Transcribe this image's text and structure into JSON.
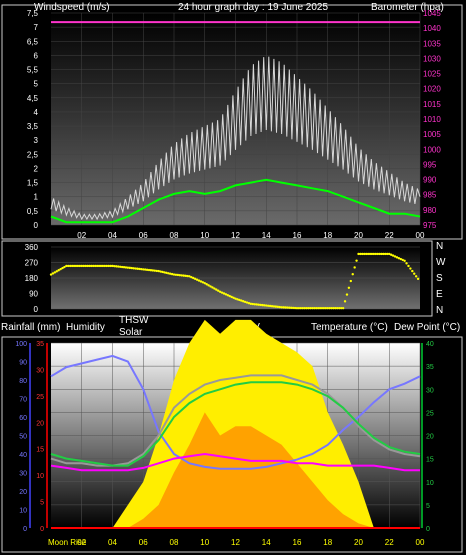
{
  "header": {
    "left": "Windspeed (m/s)",
    "center": "24 hour graph day : 19 June 2025",
    "right": "Barometer (hpa)"
  },
  "wind": {
    "y_ticks": [
      "0",
      "0,5",
      "1",
      "1,5",
      "2",
      "2,5",
      "3",
      "3,5",
      "4",
      "4,5",
      "5",
      "5,5",
      "6",
      "6,5",
      "7",
      "7,5"
    ],
    "baro_ticks": [
      "975",
      "980",
      "985",
      "990",
      "995",
      "1000",
      "1005",
      "1010",
      "1015",
      "1020",
      "1025",
      "1030",
      "1035",
      "1040",
      "1045"
    ],
    "x_ticks": [
      "02",
      "04",
      "06",
      "08",
      "10",
      "12",
      "14",
      "16",
      "18",
      "20",
      "22",
      "00"
    ]
  },
  "direction": {
    "y_ticks": [
      "360",
      "270",
      "180",
      "90",
      "0"
    ],
    "compass": [
      "N",
      "W",
      "S",
      "E",
      "N"
    ]
  },
  "lower": {
    "labels": {
      "rain": "Rainfall (mm)",
      "humidity": "Humidity",
      "thsw": "THSW",
      "solar": "Solar",
      "uv": "UV",
      "temp": "Temperature (°C)",
      "dew": "Dew Point (°C)"
    },
    "humidity_ticks": [
      "100",
      "90",
      "80",
      "70",
      "60",
      "50",
      "40",
      "30",
      "20",
      "10",
      "0"
    ],
    "rain_ticks": [
      "35",
      "30",
      "25",
      "20",
      "15",
      "10",
      "5",
      "0"
    ],
    "temp_ticks": [
      "40",
      "35",
      "30",
      "25",
      "20",
      "15",
      "10",
      "5",
      "0"
    ],
    "x_ticks": [
      "02",
      "04",
      "06",
      "08",
      "10",
      "12",
      "14",
      "16",
      "18",
      "20",
      "22",
      "00"
    ],
    "moon_label": "Moon Rise"
  },
  "colors": {
    "gust": "#d8d8d8",
    "avg_wind": "#00ff00",
    "barometer": "#ff33cc",
    "direction": "#ffff00",
    "humidity": "#7777ff",
    "temperature": "#22cc44",
    "thsw": "#999999",
    "dewpoint": "#ff00ff",
    "solar": "#ffee00",
    "uv": "#ff9900",
    "rain": "#ff0000"
  },
  "chart_data": [
    {
      "type": "line",
      "x_unit": "hour",
      "xlim": [
        0,
        24
      ],
      "ylabel": "Windspeed (m/s)",
      "ylim": [
        0,
        7.5
      ],
      "y2label": "Barometer (hpa)",
      "y2lim": [
        975,
        1045
      ],
      "series": [
        {
          "x": [
            0,
            1,
            2,
            3,
            4,
            5,
            6,
            7,
            8,
            9,
            10,
            11,
            12,
            13,
            14,
            15,
            16,
            17,
            18,
            19,
            20,
            21,
            22,
            23,
            24
          ],
          "values": [
            0.8,
            0.5,
            0.3,
            0.3,
            0.4,
            0.8,
            1.2,
            1.8,
            2.3,
            2.6,
            2.8,
            3.0,
            3.8,
            4.5,
            4.8,
            4.6,
            4.2,
            3.8,
            3.3,
            2.8,
            2.2,
            1.8,
            1.5,
            1.2,
            1.0
          ]
        },
        {
          "x": [
            0,
            1,
            2,
            3,
            4,
            5,
            6,
            7,
            8,
            9,
            10,
            11,
            12,
            13,
            14,
            15,
            16,
            17,
            18,
            19,
            20,
            21,
            22,
            23,
            24
          ],
          "values": [
            0.3,
            0.1,
            0.1,
            0.1,
            0.1,
            0.3,
            0.6,
            0.9,
            1.1,
            1.2,
            1.1,
            1.2,
            1.4,
            1.5,
            1.6,
            1.5,
            1.4,
            1.3,
            1.2,
            1.0,
            0.8,
            0.6,
            0.4,
            0.4,
            0.3
          ]
        },
        {
          "x": [
            0,
            24
          ],
          "values": [
            1042,
            1042
          ]
        }
      ]
    },
    {
      "type": "scatter",
      "x_unit": "hour",
      "xlim": [
        0,
        24
      ],
      "ylabel": "",
      "ylim": [
        0,
        360
      ],
      "series": [
        {
          "x": [
            0,
            1,
            2,
            3,
            4,
            5,
            6,
            7,
            8,
            9,
            10,
            11,
            12,
            13,
            14,
            15,
            16,
            17,
            18,
            19,
            20,
            21,
            22,
            23,
            24
          ],
          "values": [
            200,
            250,
            250,
            250,
            250,
            240,
            230,
            220,
            200,
            190,
            150,
            100,
            60,
            30,
            20,
            10,
            5,
            5,
            5,
            5,
            320,
            320,
            320,
            280,
            160
          ]
        }
      ]
    },
    {
      "type": "line",
      "x_unit": "hour",
      "xlim": [
        0,
        24
      ],
      "ylabel": "Humidity",
      "ylim": [
        0,
        100
      ],
      "y2label": "Temperature (°C)",
      "y2lim": [
        0,
        40
      ],
      "series": [
        {
          "x": [
            0,
            1,
            2,
            3,
            4,
            5,
            6,
            7,
            8,
            9,
            10,
            11,
            12,
            13,
            14,
            15,
            16,
            17,
            18,
            19,
            20,
            21,
            22,
            23,
            24
          ],
          "values": [
            82,
            87,
            89,
            91,
            93,
            90,
            75,
            52,
            40,
            35,
            33,
            32,
            32,
            32,
            33,
            35,
            37,
            40,
            45,
            53,
            60,
            68,
            75,
            78,
            82
          ]
        },
        {
          "x": [
            0,
            1,
            2,
            3,
            4,
            5,
            6,
            7,
            8,
            9,
            10,
            11,
            12,
            13,
            14,
            15,
            16,
            17,
            18,
            19,
            20,
            21,
            22,
            23,
            24
          ],
          "values": [
            16,
            15,
            14.5,
            14,
            13.5,
            13.5,
            15.5,
            19,
            24,
            27,
            29,
            30,
            31,
            31.5,
            31.5,
            31.5,
            31,
            30,
            28.5,
            26,
            22.5,
            19.5,
            17.5,
            16.5,
            16
          ]
        },
        {
          "x": [
            0,
            1,
            2,
            3,
            4,
            5,
            6,
            7,
            8,
            9,
            10,
            11,
            12,
            13,
            14,
            15,
            16,
            17,
            18,
            19,
            20,
            21,
            22,
            23,
            24
          ],
          "values": [
            15,
            14,
            14,
            13.5,
            13.5,
            14,
            16,
            20,
            26,
            29,
            31,
            32,
            32.5,
            33,
            33,
            33,
            32,
            31,
            29,
            26,
            22,
            19,
            17,
            16,
            15.5
          ]
        },
        {
          "x": [
            0,
            1,
            2,
            3,
            4,
            5,
            6,
            7,
            8,
            9,
            10,
            11,
            12,
            13,
            14,
            15,
            16,
            17,
            18,
            19,
            20,
            21,
            22,
            23,
            24
          ],
          "values": [
            13.5,
            13,
            12.5,
            12.5,
            12.5,
            12.5,
            13,
            14,
            15,
            15.5,
            16,
            15.5,
            15,
            14.5,
            14.5,
            14.5,
            14,
            14,
            13.5,
            13.5,
            13.5,
            13.5,
            13,
            12.5,
            12.5
          ]
        },
        {
          "x": [
            0,
            1,
            2,
            3,
            4,
            5,
            6,
            7,
            8,
            9,
            10,
            11,
            12,
            13,
            14,
            15,
            16,
            17,
            18,
            19,
            20,
            21,
            22,
            23,
            24
          ],
          "values": [
            0,
            0,
            0,
            0,
            0,
            5,
            10,
            20,
            32,
            40,
            45,
            42,
            45,
            45,
            42,
            40,
            38,
            35,
            25,
            18,
            10,
            0,
            0,
            0,
            0
          ]
        },
        {
          "x": [
            0,
            1,
            2,
            3,
            4,
            5,
            6,
            7,
            8,
            9,
            10,
            11,
            12,
            13,
            14,
            15,
            16,
            17,
            18,
            19,
            20,
            21,
            22,
            23,
            24
          ],
          "values": [
            0,
            0,
            0,
            0,
            0,
            0,
            2,
            5,
            12,
            18,
            25,
            20,
            22,
            22,
            20,
            18,
            14,
            10,
            6,
            3,
            1,
            0,
            0,
            0,
            0
          ]
        },
        {
          "x": [
            0,
            24
          ],
          "values": [
            0,
            0
          ]
        }
      ]
    }
  ]
}
